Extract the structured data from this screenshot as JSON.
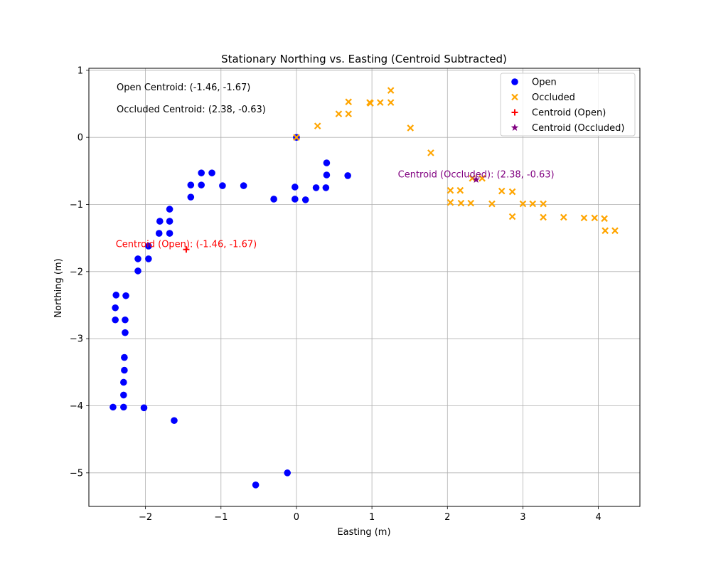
{
  "chart_data": {
    "type": "scatter",
    "title": "Stationary Northing vs. Easting (Centroid Subtracted)",
    "xlabel": "Easting (m)",
    "ylabel": "Northing (m)",
    "xlim": [
      -2.75,
      4.55
    ],
    "ylim": [
      -5.5,
      1.03
    ],
    "xticks": [
      -2,
      -1,
      0,
      1,
      2,
      3,
      4
    ],
    "xtick_labels": [
      "−2",
      "−1",
      "0",
      "1",
      "2",
      "3",
      "4"
    ],
    "yticks": [
      1,
      0,
      -1,
      -2,
      -3,
      -4,
      -5
    ],
    "ytick_labels": [
      "1",
      "0",
      "−1",
      "−2",
      "−3",
      "−4",
      "−5"
    ],
    "grid": true,
    "legend_position": "top-right",
    "colors": {
      "open": "#0000ff",
      "occluded": "#ffa500",
      "centroid_open": "#ff0000",
      "centroid_occluded": "#800080"
    },
    "text_annotations": [
      "Open Centroid: (-1.46, -1.67)",
      "Occluded Centroid: (2.38, -0.63)"
    ],
    "series": [
      {
        "name": "Open",
        "marker": "circle",
        "points": [
          [
            -2.43,
            -4.02
          ],
          [
            -2.29,
            -4.02
          ],
          [
            -2.02,
            -4.03
          ],
          [
            -1.62,
            -4.22
          ],
          [
            -2.29,
            -3.84
          ],
          [
            -2.29,
            -3.65
          ],
          [
            -2.28,
            -3.47
          ],
          [
            -2.28,
            -3.28
          ],
          [
            -2.27,
            -2.91
          ],
          [
            -2.27,
            -2.72
          ],
          [
            -2.26,
            -2.36
          ],
          [
            -2.39,
            -2.35
          ],
          [
            -2.4,
            -2.54
          ],
          [
            -2.4,
            -2.72
          ],
          [
            -2.1,
            -1.99
          ],
          [
            -2.1,
            -1.81
          ],
          [
            -1.96,
            -1.81
          ],
          [
            -1.96,
            -1.62
          ],
          [
            -1.82,
            -1.43
          ],
          [
            -1.68,
            -1.43
          ],
          [
            -1.81,
            -1.25
          ],
          [
            -1.68,
            -1.25
          ],
          [
            -1.68,
            -1.07
          ],
          [
            -1.4,
            -0.89
          ],
          [
            -1.4,
            -0.71
          ],
          [
            -1.26,
            -0.71
          ],
          [
            -1.26,
            -0.53
          ],
          [
            -1.12,
            -0.53
          ],
          [
            -0.98,
            -0.72
          ],
          [
            -0.7,
            -0.72
          ],
          [
            -0.3,
            -0.92
          ],
          [
            -0.02,
            -0.92
          ],
          [
            -0.02,
            -0.74
          ],
          [
            0.12,
            -0.93
          ],
          [
            0.26,
            -0.75
          ],
          [
            0.39,
            -0.75
          ],
          [
            0.4,
            -0.56
          ],
          [
            0.4,
            -0.38
          ],
          [
            0.68,
            -0.57
          ],
          [
            0.0,
            0.0
          ],
          [
            -0.12,
            -5.0
          ],
          [
            -0.54,
            -5.18
          ]
        ]
      },
      {
        "name": "Occluded",
        "marker": "x",
        "points": [
          [
            0.0,
            0.0
          ],
          [
            0.28,
            0.17
          ],
          [
            0.56,
            0.35
          ],
          [
            0.69,
            0.35
          ],
          [
            0.69,
            0.53
          ],
          [
            0.97,
            0.52
          ],
          [
            0.98,
            0.51
          ],
          [
            1.11,
            0.52
          ],
          [
            1.25,
            0.52
          ],
          [
            1.25,
            0.7
          ],
          [
            1.51,
            0.14
          ],
          [
            1.78,
            -0.23
          ],
          [
            2.04,
            -0.79
          ],
          [
            2.04,
            -0.97
          ],
          [
            2.17,
            -0.79
          ],
          [
            2.18,
            -0.98
          ],
          [
            2.31,
            -0.98
          ],
          [
            2.33,
            -0.61
          ],
          [
            2.46,
            -0.61
          ],
          [
            2.59,
            -0.99
          ],
          [
            2.72,
            -0.8
          ],
          [
            2.86,
            -0.81
          ],
          [
            2.86,
            -1.18
          ],
          [
            3.0,
            -0.99
          ],
          [
            3.13,
            -0.99
          ],
          [
            3.27,
            -0.99
          ],
          [
            3.27,
            -1.19
          ],
          [
            3.54,
            -1.19
          ],
          [
            3.81,
            -1.2
          ],
          [
            3.95,
            -1.2
          ],
          [
            4.08,
            -1.21
          ],
          [
            4.09,
            -1.39
          ],
          [
            4.22,
            -1.39
          ]
        ]
      },
      {
        "name": "Centroid (Open)",
        "marker": "plus",
        "points": [
          [
            -1.46,
            -1.67
          ]
        ],
        "label": "Centroid (Open): (-1.46, -1.67)"
      },
      {
        "name": "Centroid (Occluded)",
        "marker": "star",
        "points": [
          [
            2.38,
            -0.63
          ]
        ],
        "label": "Centroid (Occluded): (2.38, -0.63)"
      }
    ]
  }
}
